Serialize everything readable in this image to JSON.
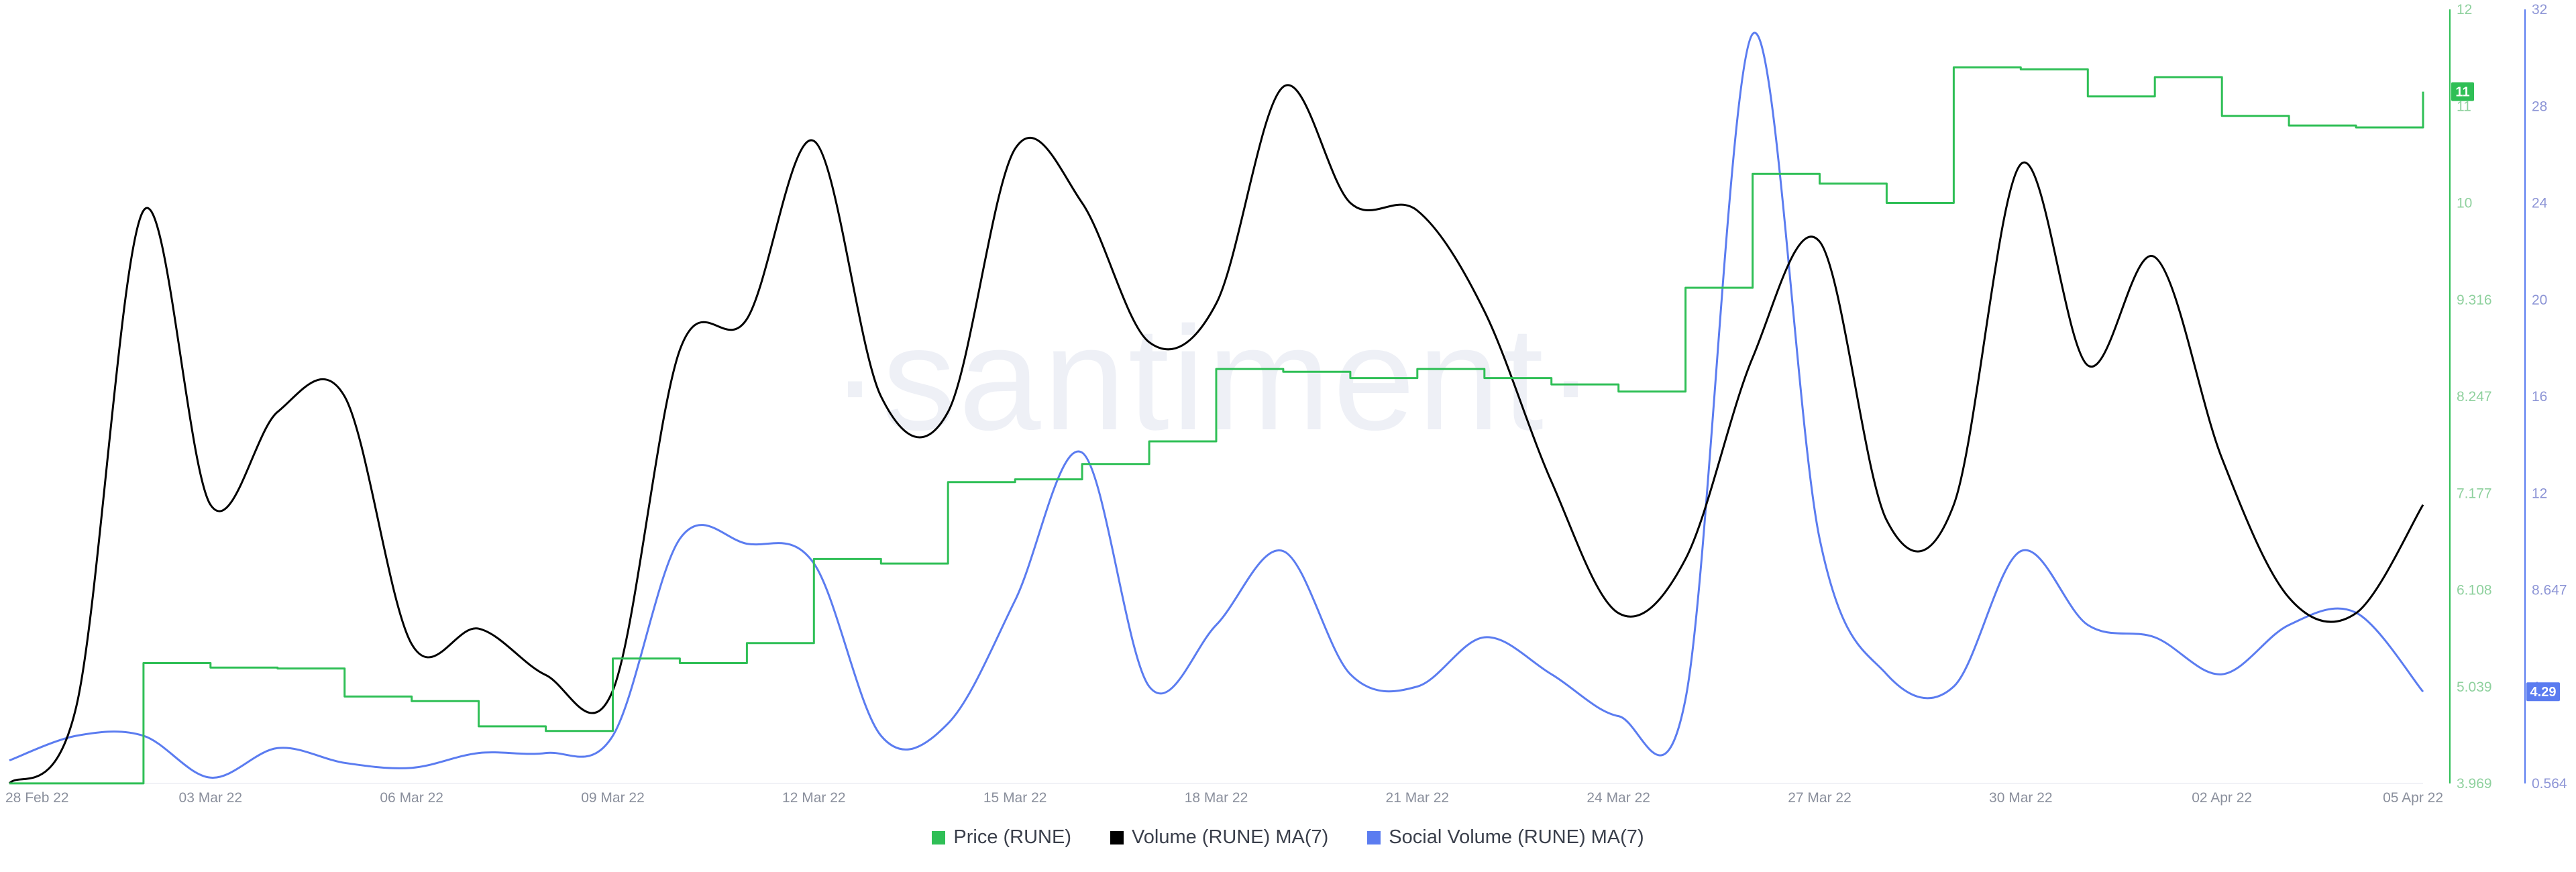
{
  "watermark": "·santiment·",
  "colors": {
    "price": "#2fbf56",
    "volume": "#000000",
    "social": "#5b7cf0"
  },
  "chart_data": {
    "type": "line",
    "x": [
      "28 Feb 22",
      "01 Mar 22",
      "02 Mar 22",
      "03 Mar 22",
      "04 Mar 22",
      "05 Mar 22",
      "06 Mar 22",
      "07 Mar 22",
      "08 Mar 22",
      "09 Mar 22",
      "10 Mar 22",
      "11 Mar 22",
      "12 Mar 22",
      "13 Mar 22",
      "14 Mar 22",
      "15 Mar 22",
      "16 Mar 22",
      "17 Mar 22",
      "18 Mar 22",
      "19 Mar 22",
      "20 Mar 22",
      "21 Mar 22",
      "22 Mar 22",
      "23 Mar 22",
      "24 Mar 22",
      "25 Mar 22",
      "26 Mar 22",
      "27 Mar 22",
      "28 Mar 22",
      "29 Mar 22",
      "30 Mar 22",
      "31 Mar 22",
      "01 Apr 22",
      "02 Apr 22",
      "03 Apr 22",
      "04 Apr 22",
      "05 Apr 22"
    ],
    "x_tick_labels": [
      "28 Feb 22",
      "03 Mar 22",
      "06 Mar 22",
      "09 Mar 22",
      "12 Mar 22",
      "15 Mar 22",
      "18 Mar 22",
      "21 Mar 22",
      "24 Mar 22",
      "27 Mar 22",
      "30 Mar 22",
      "02 Apr 22",
      "05 Apr 22"
    ],
    "x_tick_index": [
      0,
      3,
      6,
      9,
      12,
      15,
      18,
      21,
      24,
      27,
      30,
      33,
      36
    ],
    "price_axis": {
      "tick_labels": [
        "3.969",
        "5.039",
        "6.108",
        "7.177",
        "8.247",
        "9.316",
        "10",
        "11",
        "12"
      ],
      "tick_values": [
        3.969,
        5.039,
        6.108,
        7.177,
        8.247,
        9.316,
        10,
        11,
        12
      ],
      "tick_positions": [
        0,
        1,
        2,
        3,
        4,
        5,
        6,
        7,
        8
      ]
    },
    "social_axis": {
      "tick_labels": [
        "0.564",
        "4",
        "8.647",
        "12",
        "16",
        "20",
        "24",
        "28",
        "32"
      ]
    },
    "volume_range": [
      0,
      100
    ],
    "series": [
      {
        "name": "Price (RUNE)",
        "axis": "price",
        "color": "#2fbf56",
        "step": true,
        "values": [
          3.97,
          3.97,
          5.3,
          5.25,
          5.24,
          4.93,
          4.88,
          4.6,
          4.55,
          5.35,
          5.3,
          5.52,
          6.45,
          6.4,
          7.3,
          7.33,
          7.5,
          7.75,
          8.55,
          8.52,
          8.45,
          8.55,
          8.45,
          8.38,
          8.3,
          9.4,
          10.3,
          10.2,
          10.0,
          11.4,
          11.38,
          11.1,
          11.3,
          10.9,
          10.8,
          10.78,
          11.15
        ],
        "last_label": "11"
      },
      {
        "name": "Volume (RUNE) MA(7)",
        "axis": "volume",
        "color": "#000000",
        "step": false,
        "values": [
          0,
          10,
          74,
          36,
          48,
          50,
          18,
          20,
          14,
          12,
          56,
          60,
          83,
          50,
          48,
          82,
          75,
          57,
          62,
          90,
          75,
          74,
          61,
          39,
          22,
          29,
          55,
          70,
          34,
          36,
          80,
          54,
          68,
          42,
          24,
          22,
          36
        ]
      },
      {
        "name": "Social Volume (RUNE) MA(7)",
        "axis": "social",
        "color": "#5b7cf0",
        "step": false,
        "values": [
          1.5,
          2.5,
          2.5,
          0.8,
          2.0,
          1.4,
          1.2,
          1.8,
          1.8,
          2.5,
          10.5,
          10.3,
          9.5,
          2.5,
          3.0,
          8.0,
          14.0,
          4.5,
          7.0,
          10.0,
          5.0,
          4.5,
          6.5,
          5.0,
          3.3,
          4.0,
          31.0,
          10.5,
          5.0,
          4.5,
          10.0,
          7.0,
          6.5,
          5.0,
          7.0,
          7.5,
          4.29
        ],
        "last_label": "4.29"
      }
    ],
    "legend": [
      "Price (RUNE)",
      "Volume (RUNE) MA(7)",
      "Social Volume (RUNE) MA(7)"
    ],
    "legend_placement": "bottom-center",
    "grid": false
  }
}
